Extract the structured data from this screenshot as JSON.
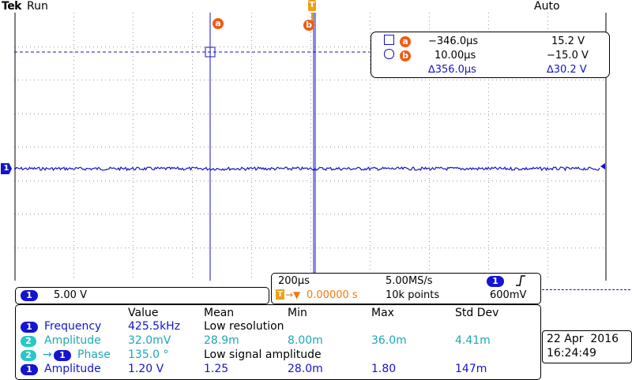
{
  "header": {
    "brand": "Tek",
    "acq_state": "Run",
    "trigger_mode": "Auto"
  },
  "screen": {
    "channel_marker": "1",
    "trigger_marker": "T",
    "cursor_a_label": "a",
    "cursor_b_label": "b"
  },
  "cursors": {
    "a_label": "a",
    "b_label": "b",
    "a_time": "−346.0µs",
    "a_volt": "15.2 V",
    "b_time": "10.00µs",
    "b_volt": "−15.0 V",
    "delta_time": "∆356.0µs",
    "delta_volt": "∆30.2 V"
  },
  "channel": {
    "number": "1",
    "scale": "5.00 V"
  },
  "timebase": {
    "time_div": "200µs",
    "sample_rate": "5.00MS/s",
    "trigger_channel": "1",
    "trigger_slope_icon": "rising-edge-icon",
    "trig_pos_prefix": "T",
    "trig_pos": "0.00000 s",
    "record_length": "10k points",
    "trigger_level": "600mV"
  },
  "measurements": {
    "headers": [
      "Value",
      "Mean",
      "Min",
      "Max",
      "Std Dev"
    ],
    "rows": [
      {
        "ch": "1",
        "ch2": "",
        "name": "Frequency",
        "value": "425.5kHz",
        "mean": "Low resolution",
        "min": "",
        "max": "",
        "std": "",
        "color": "blue"
      },
      {
        "ch": "2",
        "ch2": "",
        "name": "Amplitude",
        "value": "32.0mV",
        "mean": "28.9m",
        "min": "8.00m",
        "max": "36.0m",
        "std": "4.41m",
        "color": "cyan"
      },
      {
        "ch": "2",
        "ch2": "1",
        "name": "Phase",
        "value": "135.0 °",
        "mean": "Low signal amplitude",
        "min": "",
        "max": "",
        "std": "",
        "color": "cyan"
      },
      {
        "ch": "1",
        "ch2": "",
        "name": "Amplitude",
        "value": "1.20 V",
        "mean": "1.25",
        "min": "28.0m",
        "max": "1.80",
        "std": "147m",
        "color": "blue"
      }
    ]
  },
  "clock": {
    "date": "22 Apr  2016",
    "time": "16:24:49"
  },
  "colors": {
    "trace": "#1414c8",
    "cursor_badge": "#f05a14",
    "cyan": "#1ea8b4",
    "trigger": "#f0a014"
  }
}
